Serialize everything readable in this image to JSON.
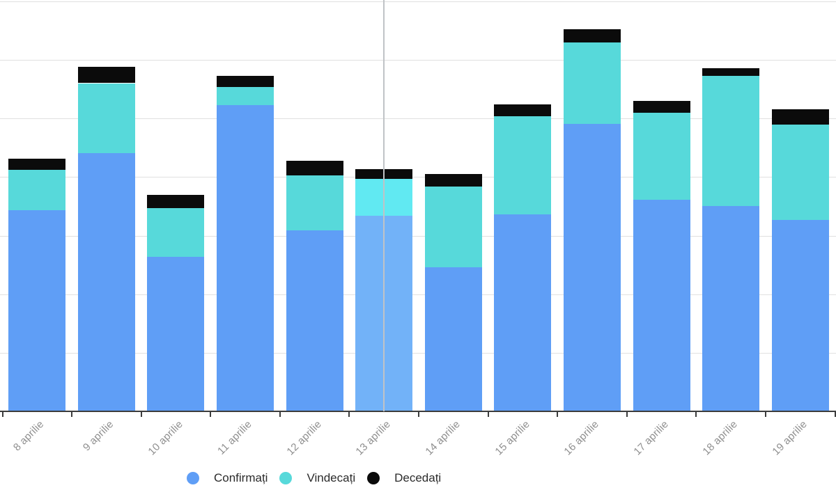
{
  "chart_data": {
    "type": "bar",
    "stacked": true,
    "categories": [
      "8 aprilie",
      "9 aprilie",
      "10 aprilie",
      "11 aprilie",
      "12 aprilie",
      "13 aprilie",
      "14 aprilie",
      "15 aprilie",
      "16 aprilie",
      "17 aprilie",
      "18 aprilie",
      "19 aprilie"
    ],
    "series": [
      {
        "key": "confirmati",
        "name": "Confirmați",
        "color": "#5f9ef6",
        "highlight_color": "#72b2f8",
        "values": [
          344,
          441,
          264,
          523,
          310,
          335,
          247,
          337,
          491,
          362,
          351,
          328
        ]
      },
      {
        "key": "vindecati",
        "name": "Vindecați",
        "color": "#57d9da",
        "highlight_color": "#61e9f2",
        "values": [
          69,
          120,
          84,
          31,
          94,
          62,
          137,
          167,
          140,
          149,
          223,
          162
        ]
      },
      {
        "key": "decedati",
        "name": "Decedați",
        "color": "#0b0b0b",
        "highlight_color": "#0b0b0b",
        "values": [
          19,
          28,
          22,
          20,
          24,
          17,
          22,
          21,
          22,
          20,
          12,
          26
        ]
      }
    ],
    "xlabel": "",
    "ylabel": "",
    "ylim": [
      0,
      700
    ],
    "grid": {
      "horizontal": true,
      "interval": 100
    },
    "legend_position": "bottom",
    "highlight": {
      "index": 5,
      "category": "13 aprilie",
      "crosshair": true
    }
  },
  "colors": {
    "background": "#ffffff",
    "gridline": "#e0e0e0",
    "axis": "#3c3c3c",
    "tick": "#3c3c3c",
    "tick_label": "#8f8f8f",
    "legend_text": "#2b2b2b",
    "crosshair": "#c0c3c6"
  }
}
